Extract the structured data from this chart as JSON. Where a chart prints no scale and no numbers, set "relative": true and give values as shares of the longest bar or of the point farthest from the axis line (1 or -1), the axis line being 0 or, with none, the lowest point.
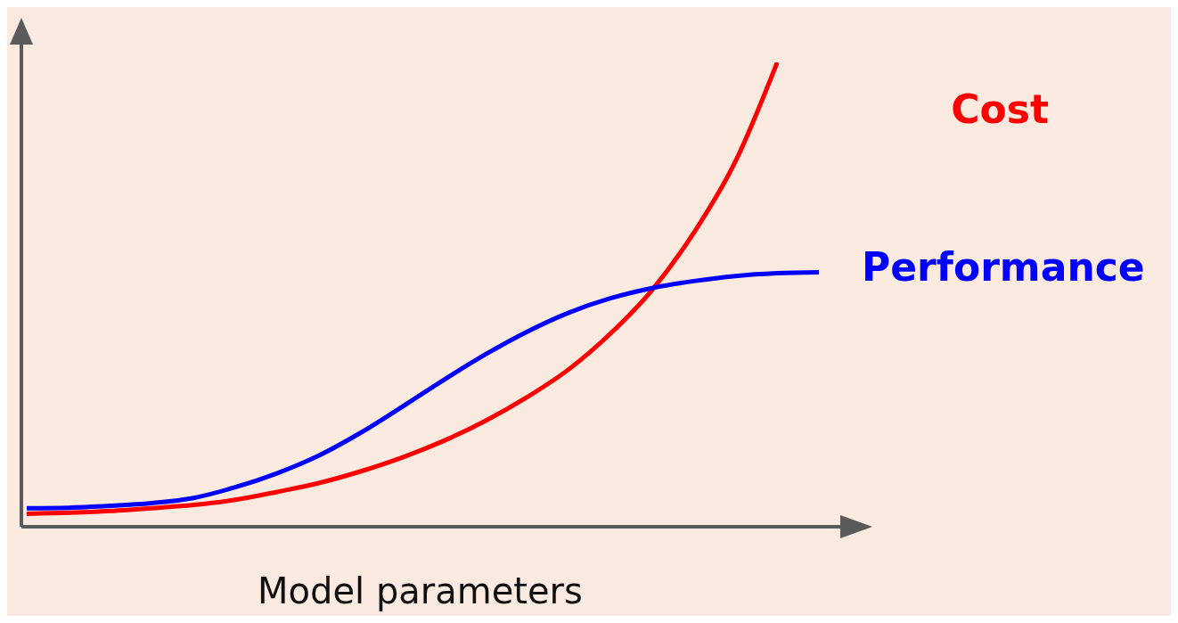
{
  "chart_data": {
    "type": "line",
    "relative": true,
    "xlabel": "Model parameters",
    "categories": [
      null,
      null,
      null,
      null,
      null,
      null,
      null,
      null,
      null,
      null,
      null,
      null,
      null,
      null,
      null,
      null,
      null,
      null,
      null,
      null
    ],
    "series": [
      {
        "name": "Cost",
        "color": "#ff0000",
        "values": [
          0.028,
          0.03,
          0.034,
          0.04,
          0.047,
          0.058,
          0.075,
          0.094,
          0.119,
          0.149,
          0.185,
          0.228,
          0.279,
          0.339,
          0.416,
          0.51,
          0.633,
          0.787,
          1,
          null
        ]
      },
      {
        "name": "Performance",
        "color": "#0000ff",
        "values": [
          0.04,
          0.041,
          0.045,
          0.051,
          0.062,
          0.085,
          0.115,
          0.153,
          0.202,
          0.258,
          0.316,
          0.371,
          0.42,
          0.461,
          0.492,
          0.514,
          0.529,
          0.54,
          0.546,
          0.548
        ]
      }
    ],
    "legend": false,
    "grid": false,
    "marker": "none",
    "line_style": "solid"
  }
}
